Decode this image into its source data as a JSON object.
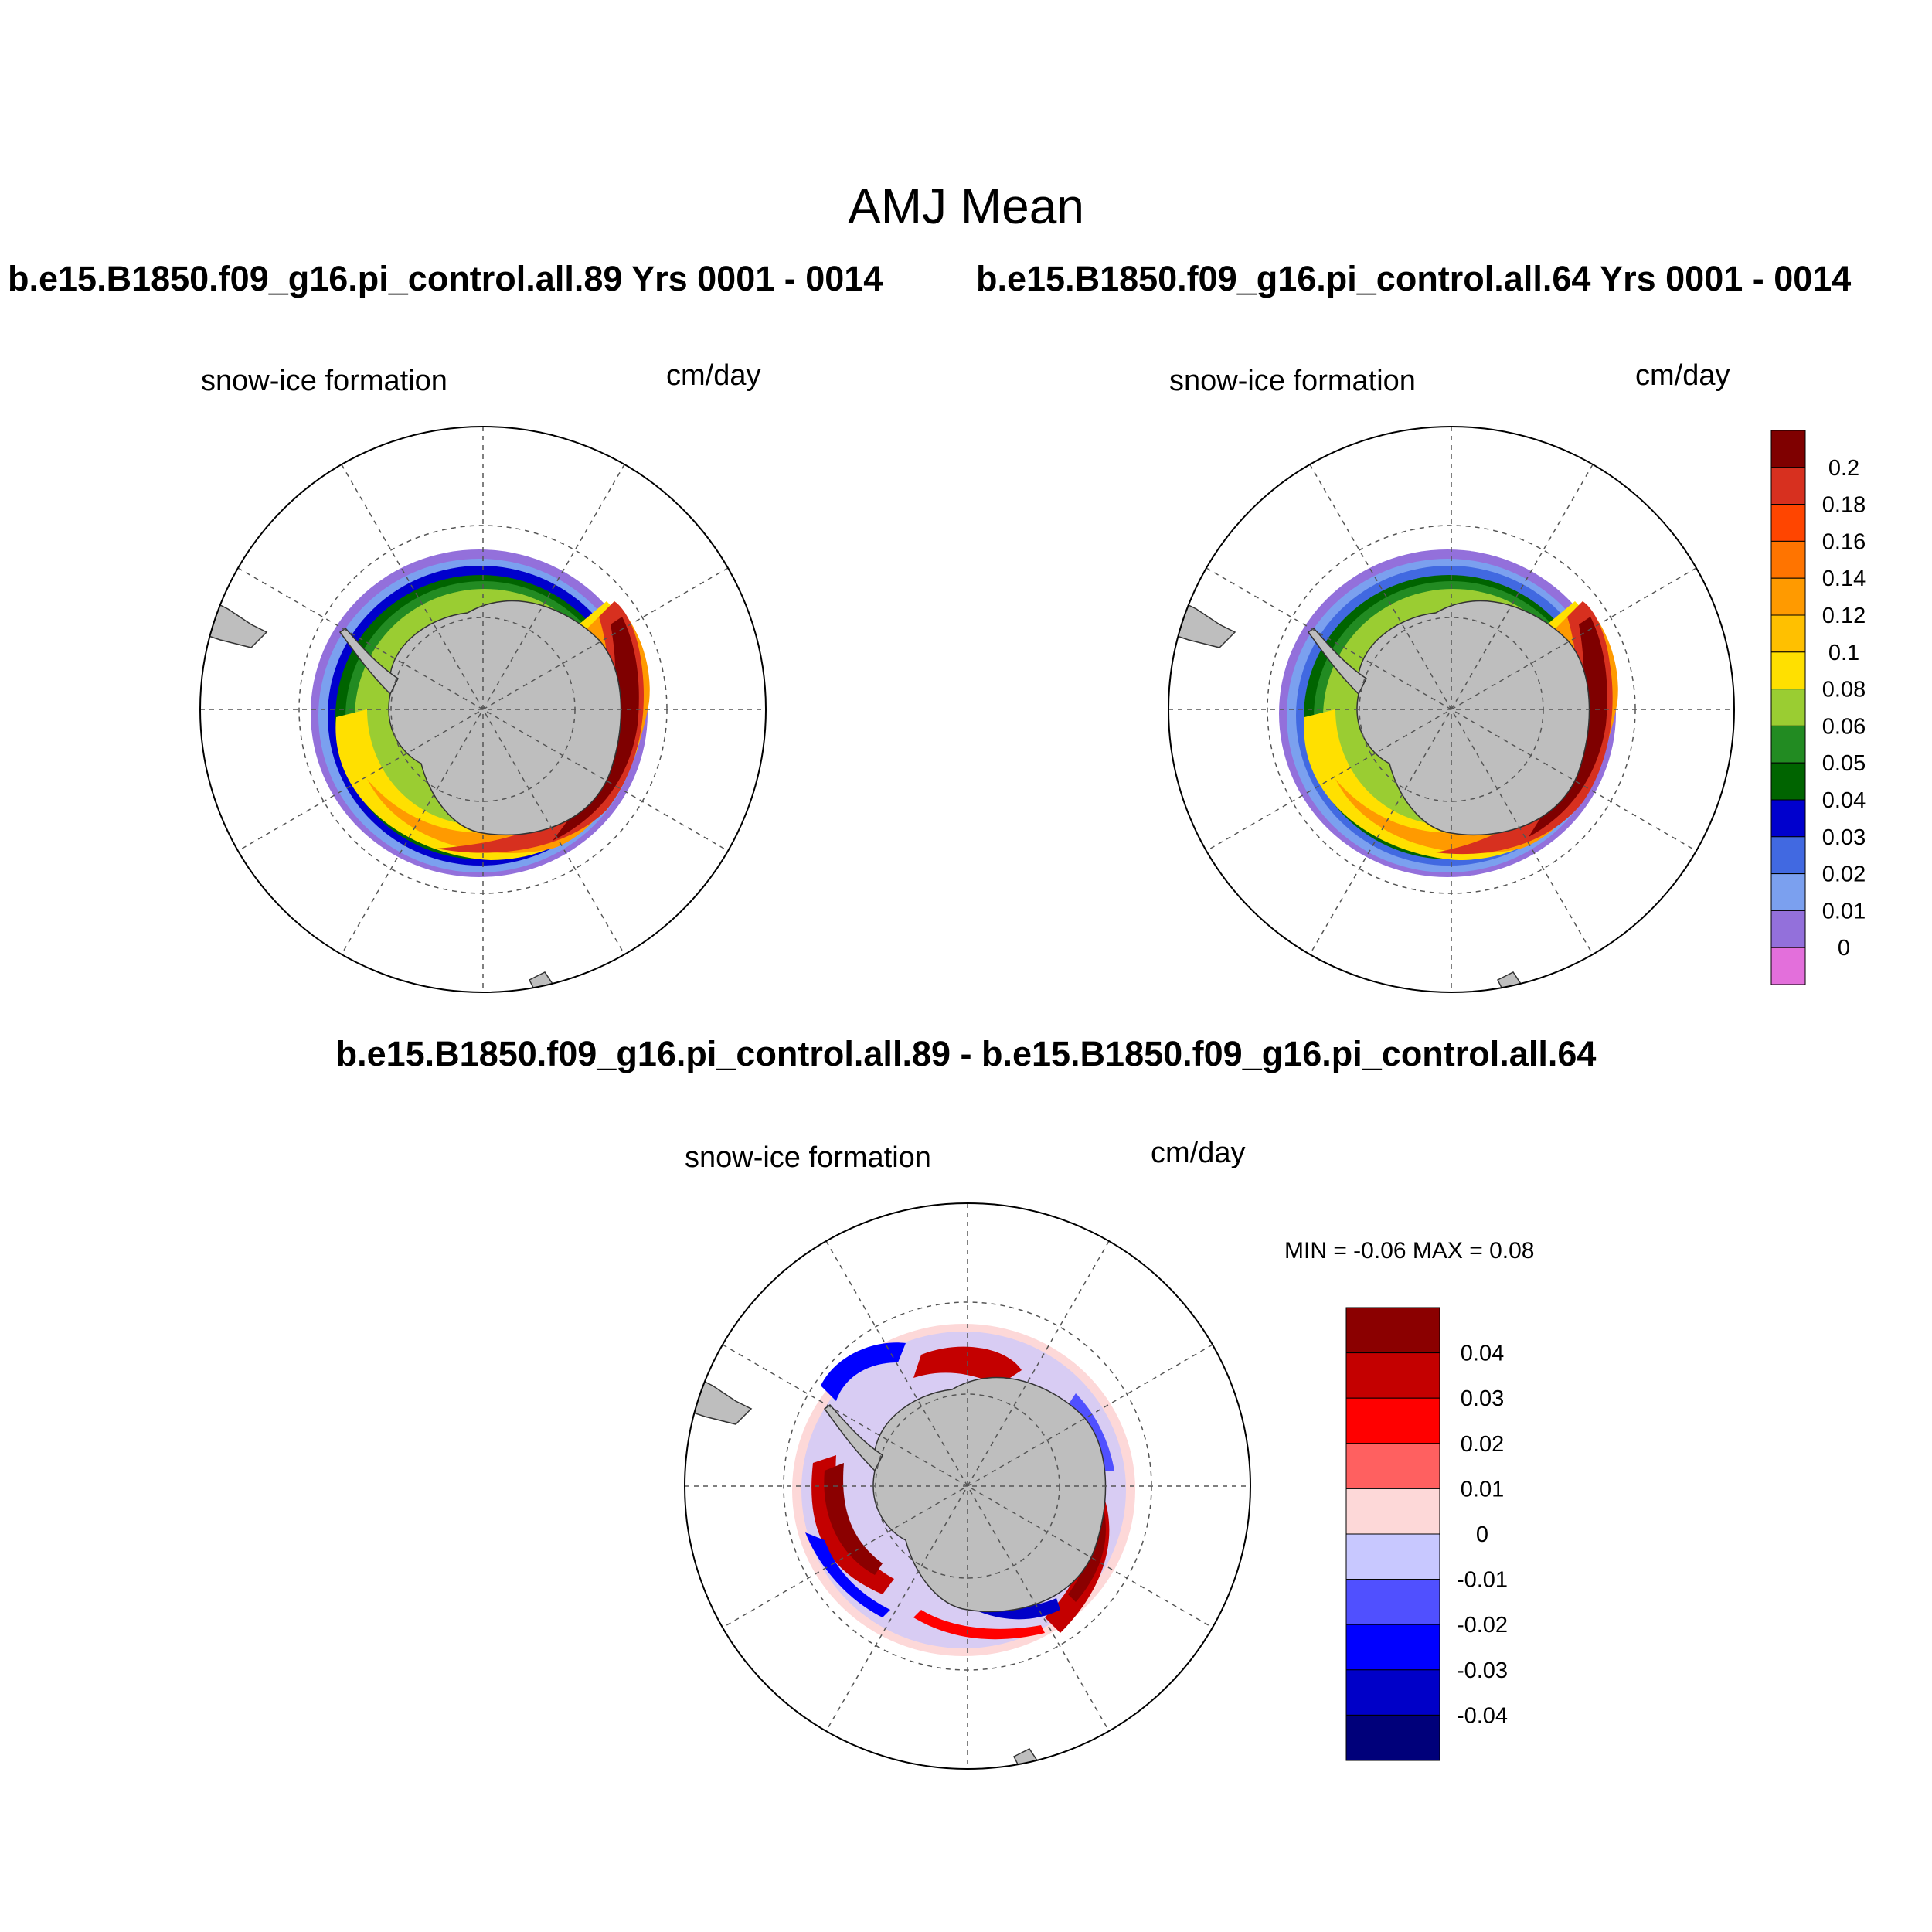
{
  "title": "AMJ Mean",
  "panels": [
    {
      "run_title": "b.e15.B1850.f09_g16.pi_control.all.89  Yrs 0001 - 0014",
      "variable": "snow-ice formation",
      "units": "cm/day"
    },
    {
      "run_title": "b.e15.B1850.f09_g16.pi_control.all.64  Yrs 0001 - 0014",
      "variable": "snow-ice formation",
      "units": "cm/day"
    },
    {
      "run_title": "b.e15.B1850.f09_g16.pi_control.all.89 - b.e15.B1850.f09_g16.pi_control.all.64",
      "variable": "snow-ice formation",
      "units": "cm/day",
      "minmax": "MIN =  -0.06 MAX =   0.08"
    }
  ],
  "colorbar_main": {
    "labels": [
      "0.2",
      "0.18",
      "0.16",
      "0.14",
      "0.12",
      "0.1",
      "0.08",
      "0.06",
      "0.05",
      "0.04",
      "0.03",
      "0.02",
      "0.01",
      "0"
    ],
    "colors": [
      "#7f0000",
      "#d7301f",
      "#ff4500",
      "#ff7400",
      "#ff9a00",
      "#ffc000",
      "#ffe000",
      "#9acd32",
      "#228b22",
      "#006400",
      "#0000cd",
      "#4169e1",
      "#7ba0ef",
      "#9370db",
      "#e36fdb"
    ]
  },
  "colorbar_diff": {
    "labels": [
      "0.04",
      "0.03",
      "0.02",
      "0.01",
      "0",
      "-0.01",
      "-0.02",
      "-0.03",
      "-0.04"
    ],
    "colors": [
      "#8b0000",
      "#c40000",
      "#ff0000",
      "#ff6060",
      "#fdd8d8",
      "#c8c8ff",
      "#5050ff",
      "#0000ff",
      "#0000c8",
      "#00007a"
    ]
  },
  "colors": {
    "land": "#bebebe",
    "grid": "#555555",
    "frame": "#000000"
  }
}
